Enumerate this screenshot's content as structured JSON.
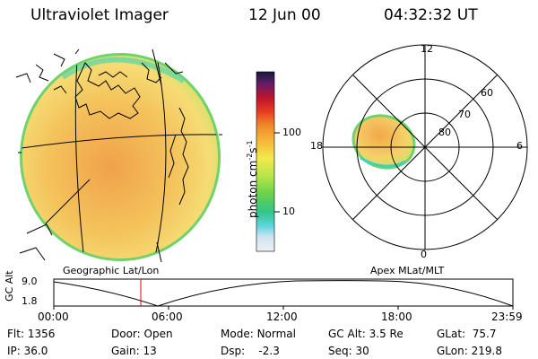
{
  "header": {
    "instrument": "Ultraviolet Imager",
    "date": "12 Jun 00",
    "time": "04:32:32 UT"
  },
  "panels": {
    "geographic_title": "Geographic Lat/Lon",
    "apex_title": "Apex MLat/MLT"
  },
  "colorbar": {
    "label_main": "photon cm",
    "label_sup1": "-2",
    "label_mid": "s",
    "label_sup2": "-1",
    "tick_100": "100",
    "tick_10": "10",
    "scale": "log"
  },
  "polar_plot": {
    "mlt_labels": [
      "12",
      "18",
      "6",
      "0"
    ],
    "mlat_labels": [
      "60",
      "70",
      "80"
    ]
  },
  "altitude_plot": {
    "ylabel": "GC Alt",
    "yticks": [
      "9.0",
      "1.8"
    ],
    "xticks": [
      "00:00",
      "06:00",
      "12:00",
      "18:00",
      "23:59"
    ],
    "current_marker_time": "04:32"
  },
  "status": {
    "flt_label": "Flt:",
    "flt_value": "1356",
    "ip_label": "IP:",
    "ip_value": "36.0",
    "door_label": "Door:",
    "door_value": "Open",
    "gain_label": "Gain:",
    "gain_value": "13",
    "mode_label": "Mode:",
    "mode_value": "Normal",
    "dsp_label": "Dsp:",
    "dsp_value": "-2.3",
    "gcalt_label": "GC Alt:",
    "gcalt_value": "3.5 Re",
    "seq_label": "Seq:",
    "seq_value": "30",
    "glat_label": "GLat:",
    "glat_value": "75.7",
    "glon_label": "GLon:",
    "glon_value": "219.8"
  },
  "colors": {
    "disk_fill": "#f3c35a",
    "disk_edge": "#7fd36a",
    "marker": "#e0000a"
  }
}
